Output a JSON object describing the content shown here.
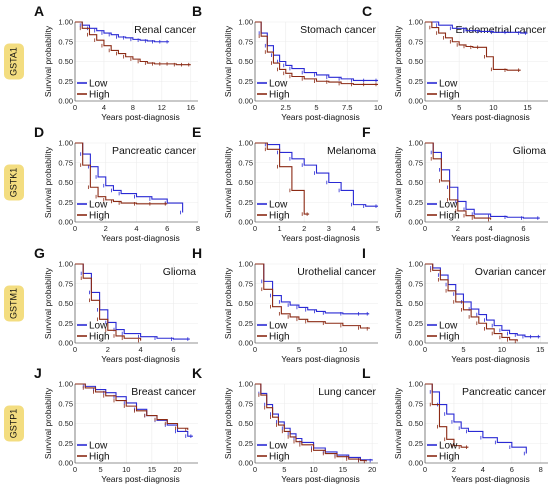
{
  "colors": {
    "low": "#2a2ad4",
    "high": "#8b2a14",
    "gene_badge": "#f3dd80",
    "grid": "#ececec"
  },
  "common": {
    "ylabel": "Survival probability",
    "xlabel": "Years post-diagnosis",
    "y_ticks": [
      "0.00",
      "0.25",
      "0.50",
      "0.75",
      "1.00"
    ],
    "legend": [
      "Low",
      "High"
    ]
  },
  "genes": [
    "GSTA1",
    "GSTK1",
    "GSTM1",
    "GSTP1"
  ],
  "chart_data": [
    {
      "panel": "A",
      "gene": "GSTA1",
      "type": "line",
      "title": "Renal cancer",
      "xlim": [
        0,
        17
      ],
      "ylim": [
        0,
        1
      ],
      "x_ticks": [
        0,
        4,
        8,
        12,
        16
      ],
      "series": [
        {
          "name": "Low",
          "x": [
            0,
            1,
            2,
            3,
            4,
            5,
            6,
            7,
            8,
            9,
            10,
            11,
            12,
            13
          ],
          "y": [
            1.0,
            0.96,
            0.92,
            0.89,
            0.86,
            0.84,
            0.81,
            0.8,
            0.78,
            0.77,
            0.76,
            0.75,
            0.75,
            0.75
          ]
        },
        {
          "name": "High",
          "x": [
            0,
            1,
            2,
            3,
            4,
            5,
            6,
            7,
            8,
            9,
            10,
            11,
            12,
            13,
            14,
            15,
            16
          ],
          "y": [
            1.0,
            0.92,
            0.84,
            0.77,
            0.7,
            0.64,
            0.6,
            0.56,
            0.53,
            0.5,
            0.48,
            0.47,
            0.47,
            0.47,
            0.46,
            0.46,
            0.46
          ]
        }
      ]
    },
    {
      "panel": "B",
      "gene": "GSTA1",
      "type": "line",
      "title": "Stomach cancer",
      "xlim": [
        0,
        10
      ],
      "ylim": [
        0,
        1
      ],
      "x_ticks": [
        0,
        2.5,
        5,
        7.5,
        10
      ],
      "x_tick_labels": [
        "0",
        "2.5",
        "5",
        "7.5",
        "10"
      ],
      "series": [
        {
          "name": "Low",
          "x": [
            0,
            0.5,
            1,
            1.5,
            2,
            2.5,
            3,
            4,
            5,
            6,
            7,
            8,
            9,
            10
          ],
          "y": [
            1.0,
            0.86,
            0.7,
            0.58,
            0.5,
            0.45,
            0.41,
            0.36,
            0.33,
            0.3,
            0.28,
            0.26,
            0.26,
            0.26
          ]
        },
        {
          "name": "High",
          "x": [
            0,
            0.5,
            1,
            1.5,
            2,
            2.5,
            3,
            4,
            5,
            6,
            7,
            8,
            9,
            10
          ],
          "y": [
            1.0,
            0.82,
            0.62,
            0.48,
            0.4,
            0.35,
            0.31,
            0.28,
            0.25,
            0.24,
            0.22,
            0.21,
            0.21,
            0.21
          ]
        }
      ]
    },
    {
      "panel": "C",
      "gene": "GSTA1",
      "type": "line",
      "title": "Endometrial cancer",
      "xlim": [
        0,
        18
      ],
      "ylim": [
        0,
        1
      ],
      "x_ticks": [
        0,
        5,
        10,
        15
      ],
      "series": [
        {
          "name": "Low",
          "x": [
            0,
            2,
            4,
            6,
            8,
            10,
            12,
            14,
            15
          ],
          "y": [
            1.0,
            0.96,
            0.92,
            0.89,
            0.88,
            0.87,
            0.87,
            0.86,
            0.86
          ]
        },
        {
          "name": "High",
          "x": [
            0,
            1,
            2,
            3,
            4,
            5,
            6,
            7,
            8,
            9,
            10,
            12,
            14
          ],
          "y": [
            1.0,
            0.93,
            0.86,
            0.8,
            0.75,
            0.71,
            0.69,
            0.68,
            0.68,
            0.56,
            0.4,
            0.39,
            0.39
          ]
        }
      ]
    },
    {
      "panel": "D",
      "gene": "GSTK1",
      "type": "line",
      "title": "Pancreatic cancer",
      "xlim": [
        0,
        8
      ],
      "ylim": [
        0,
        1
      ],
      "x_ticks": [
        0,
        2,
        4,
        6,
        8
      ],
      "series": [
        {
          "name": "Low",
          "x": [
            0,
            0.5,
            1,
            1.5,
            2,
            2.5,
            3,
            4,
            5,
            6,
            7
          ],
          "y": [
            1.0,
            0.86,
            0.7,
            0.57,
            0.46,
            0.4,
            0.36,
            0.32,
            0.29,
            0.24,
            0.12
          ]
        },
        {
          "name": "High",
          "x": [
            0,
            0.5,
            1,
            1.5,
            2,
            2.5,
            3,
            4,
            5,
            6
          ],
          "y": [
            1.0,
            0.72,
            0.44,
            0.32,
            0.28,
            0.26,
            0.24,
            0.23,
            0.23,
            0.23
          ]
        }
      ]
    },
    {
      "panel": "E",
      "gene": "GSTK1",
      "type": "line",
      "title": "Melanoma",
      "xlim": [
        0,
        5
      ],
      "ylim": [
        0,
        1
      ],
      "x_ticks": [
        0,
        1,
        2,
        3,
        4,
        5
      ],
      "series": [
        {
          "name": "Low",
          "x": [
            0,
            0.5,
            1,
            1.5,
            2,
            2.5,
            3,
            3.5,
            4,
            4.5,
            5
          ],
          "y": [
            1.0,
            0.98,
            0.88,
            0.8,
            0.72,
            0.62,
            0.5,
            0.4,
            0.22,
            0.2,
            0.2
          ]
        },
        {
          "name": "High",
          "x": [
            0,
            0.5,
            1,
            1.5,
            2,
            2.2
          ],
          "y": [
            1.0,
            0.92,
            0.7,
            0.4,
            0.1,
            0.1
          ]
        }
      ]
    },
    {
      "panel": "F",
      "gene": "GSTK1",
      "type": "line",
      "title": "Glioma",
      "xlim": [
        0,
        7.5
      ],
      "ylim": [
        0,
        1
      ],
      "x_ticks": [
        0,
        2,
        4,
        6
      ],
      "series": [
        {
          "name": "Low",
          "x": [
            0,
            0.5,
            1,
            1.5,
            2,
            2.5,
            3,
            4,
            5,
            6,
            7
          ],
          "y": [
            1.0,
            0.88,
            0.66,
            0.44,
            0.26,
            0.16,
            0.1,
            0.07,
            0.06,
            0.05,
            0.05
          ]
        },
        {
          "name": "High",
          "x": [
            0,
            0.5,
            1,
            1.5,
            2,
            2.5,
            3,
            4
          ],
          "y": [
            1.0,
            0.8,
            0.52,
            0.28,
            0.14,
            0.08,
            0.05,
            0.03
          ]
        }
      ]
    },
    {
      "panel": "G",
      "gene": "GSTM1",
      "type": "line",
      "title": "Glioma",
      "xlim": [
        0,
        7.5
      ],
      "ylim": [
        0,
        1
      ],
      "x_ticks": [
        0,
        2,
        4,
        6
      ],
      "series": [
        {
          "name": "Low",
          "x": [
            0,
            0.5,
            1,
            1.5,
            2,
            2.5,
            3,
            4,
            5,
            6,
            7
          ],
          "y": [
            1.0,
            0.88,
            0.64,
            0.42,
            0.26,
            0.17,
            0.12,
            0.08,
            0.06,
            0.05,
            0.05
          ]
        },
        {
          "name": "High",
          "x": [
            0,
            0.5,
            1,
            1.5,
            2,
            2.5,
            3,
            4
          ],
          "y": [
            1.0,
            0.82,
            0.54,
            0.3,
            0.16,
            0.09,
            0.06,
            0.03
          ]
        }
      ]
    },
    {
      "panel": "H",
      "gene": "GSTM1",
      "type": "line",
      "title": "Urothelial cancer",
      "xlim": [
        0,
        14
      ],
      "ylim": [
        0,
        1
      ],
      "x_ticks": [
        0,
        5,
        10
      ],
      "series": [
        {
          "name": "Low",
          "x": [
            0,
            1,
            2,
            3,
            4,
            5,
            6,
            7,
            8,
            10,
            12,
            13
          ],
          "y": [
            1.0,
            0.78,
            0.6,
            0.52,
            0.48,
            0.45,
            0.42,
            0.4,
            0.38,
            0.37,
            0.37,
            0.37
          ]
        },
        {
          "name": "High",
          "x": [
            0,
            1,
            2,
            3,
            4,
            5,
            6,
            8,
            10,
            12,
            13
          ],
          "y": [
            1.0,
            0.68,
            0.46,
            0.37,
            0.33,
            0.3,
            0.27,
            0.25,
            0.22,
            0.19,
            0.18
          ]
        }
      ]
    },
    {
      "panel": "I",
      "gene": "GSTM1",
      "type": "line",
      "title": "Ovarian cancer",
      "xlim": [
        0,
        16
      ],
      "ylim": [
        0,
        1
      ],
      "x_ticks": [
        0,
        5,
        10,
        15
      ],
      "series": [
        {
          "name": "Low",
          "x": [
            0,
            1,
            2,
            3,
            4,
            5,
            6,
            7,
            8,
            9,
            10,
            11,
            12,
            13,
            14,
            15
          ],
          "y": [
            1.0,
            0.95,
            0.86,
            0.74,
            0.62,
            0.52,
            0.43,
            0.36,
            0.29,
            0.22,
            0.16,
            0.12,
            0.1,
            0.08,
            0.08,
            0.08
          ]
        },
        {
          "name": "High",
          "x": [
            0,
            1,
            2,
            3,
            4,
            5,
            6,
            7,
            8,
            9,
            10,
            11,
            12
          ],
          "y": [
            1.0,
            0.92,
            0.8,
            0.66,
            0.52,
            0.42,
            0.33,
            0.25,
            0.18,
            0.12,
            0.07,
            0.04,
            0.02
          ]
        }
      ]
    },
    {
      "panel": "J",
      "gene": "GSTP1",
      "type": "line",
      "title": "Breast cancer",
      "xlim": [
        0,
        24
      ],
      "ylim": [
        0,
        1
      ],
      "x_ticks": [
        0,
        5,
        10,
        15,
        20
      ],
      "series": [
        {
          "name": "Low",
          "x": [
            0,
            2,
            4,
            6,
            8,
            10,
            12,
            14,
            16,
            18,
            20,
            22,
            23
          ],
          "y": [
            1.0,
            0.97,
            0.93,
            0.89,
            0.84,
            0.76,
            0.68,
            0.6,
            0.54,
            0.48,
            0.4,
            0.34,
            0.34
          ]
        },
        {
          "name": "High",
          "x": [
            0,
            2,
            4,
            6,
            8,
            10,
            12,
            14,
            16,
            18,
            20,
            22
          ],
          "y": [
            1.0,
            0.95,
            0.9,
            0.85,
            0.79,
            0.72,
            0.66,
            0.6,
            0.55,
            0.5,
            0.44,
            0.42
          ]
        }
      ]
    },
    {
      "panel": "K",
      "gene": "GSTP1",
      "type": "line",
      "title": "Lung cancer",
      "xlim": [
        0,
        21
      ],
      "ylim": [
        0,
        1
      ],
      "x_ticks": [
        0,
        5,
        10,
        15,
        20
      ],
      "series": [
        {
          "name": "Low",
          "x": [
            0,
            1,
            2,
            3,
            4,
            5,
            6,
            7,
            8,
            10,
            12,
            14,
            16,
            18,
            20
          ],
          "y": [
            1.0,
            0.88,
            0.74,
            0.62,
            0.52,
            0.44,
            0.37,
            0.31,
            0.26,
            0.19,
            0.14,
            0.1,
            0.07,
            0.04,
            0.03
          ]
        },
        {
          "name": "High",
          "x": [
            0,
            1,
            2,
            3,
            4,
            5,
            6,
            7,
            8,
            10,
            12,
            14,
            16,
            18,
            19
          ],
          "y": [
            1.0,
            0.86,
            0.7,
            0.58,
            0.48,
            0.4,
            0.33,
            0.27,
            0.23,
            0.16,
            0.12,
            0.08,
            0.05,
            0.03,
            0.02
          ]
        }
      ]
    },
    {
      "panel": "L",
      "gene": "GSTP1",
      "type": "line",
      "title": "Pancreatic cancer",
      "xlim": [
        0,
        8.5
      ],
      "ylim": [
        0,
        1
      ],
      "x_ticks": [
        0,
        2,
        4,
        6,
        8
      ],
      "series": [
        {
          "name": "Low",
          "x": [
            0,
            0.5,
            1,
            1.5,
            2,
            2.5,
            3,
            4,
            5,
            6,
            7
          ],
          "y": [
            1.0,
            0.9,
            0.74,
            0.62,
            0.52,
            0.44,
            0.4,
            0.32,
            0.26,
            0.2,
            0.12
          ]
        },
        {
          "name": "High",
          "x": [
            0,
            0.5,
            1,
            1.5,
            2,
            2.5,
            3
          ],
          "y": [
            1.0,
            0.74,
            0.46,
            0.3,
            0.22,
            0.2,
            0.2
          ]
        }
      ]
    }
  ]
}
